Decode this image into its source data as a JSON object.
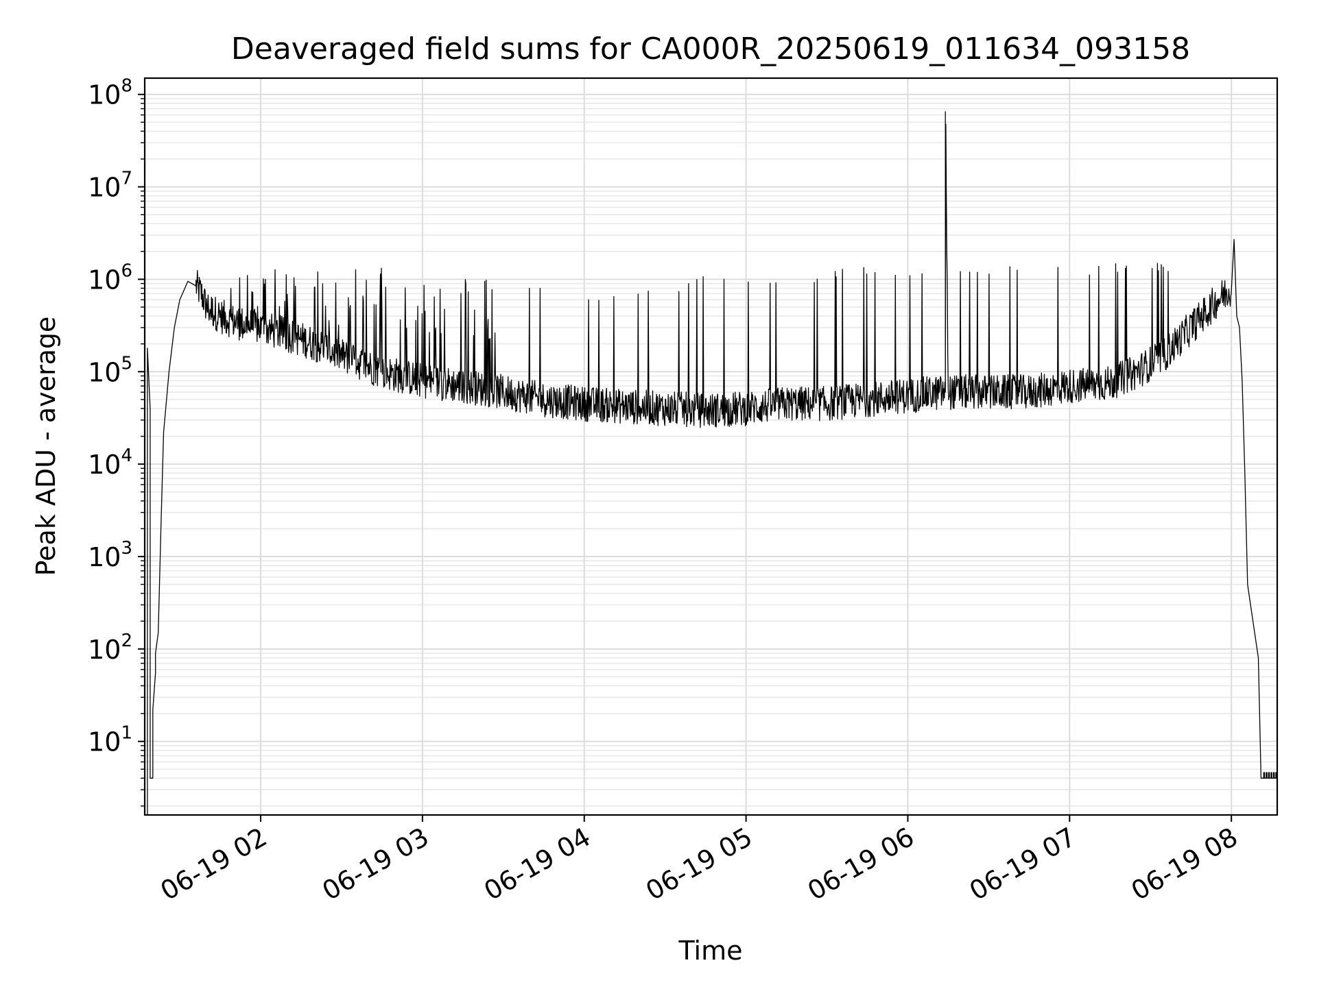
{
  "chart_data": {
    "type": "line",
    "title": "Deaveraged field sums for CA000R_20250619_011634_093158",
    "xlabel": "Time",
    "ylabel": "Peak ADU - average",
    "y_scale": "log",
    "ylim": [
      1.6,
      150000000
    ],
    "xlim": [
      "2025-06-19 01:17",
      "2025-06-19 08:17"
    ],
    "grid": true,
    "x_ticks": [
      {
        "t": "2025-06-19 02:00",
        "label": "06-19 02"
      },
      {
        "t": "2025-06-19 03:00",
        "label": "06-19 03"
      },
      {
        "t": "2025-06-19 04:00",
        "label": "06-19 04"
      },
      {
        "t": "2025-06-19 05:00",
        "label": "06-19 05"
      },
      {
        "t": "2025-06-19 06:00",
        "label": "06-19 06"
      },
      {
        "t": "2025-06-19 07:00",
        "label": "06-19 07"
      },
      {
        "t": "2025-06-19 08:00",
        "label": "06-19 08"
      }
    ],
    "y_ticks": [
      {
        "value": 10,
        "base": "10",
        "exp": "1"
      },
      {
        "value": 100,
        "base": "10",
        "exp": "2"
      },
      {
        "value": 1000,
        "base": "10",
        "exp": "3"
      },
      {
        "value": 10000,
        "base": "10",
        "exp": "4"
      },
      {
        "value": 100000,
        "base": "10",
        "exp": "5"
      },
      {
        "value": 1000000,
        "base": "10",
        "exp": "6"
      },
      {
        "value": 10000000,
        "base": "10",
        "exp": "7"
      },
      {
        "value": 100000000,
        "base": "10",
        "exp": "8"
      }
    ],
    "series": [
      {
        "color": "#000000",
        "points": [
          [
            "2025-06-19 01:18",
            1.6
          ],
          [
            "2025-06-19 01:18",
            180000
          ],
          [
            "2025-06-19 01:19",
            40000
          ],
          [
            "2025-06-19 01:19",
            4
          ],
          [
            "2025-06-19 01:20",
            4
          ],
          [
            "2025-06-19 01:20",
            22
          ],
          [
            "2025-06-19 01:21",
            55
          ],
          [
            "2025-06-19 01:21",
            90
          ],
          [
            "2025-06-19 01:22",
            150
          ],
          [
            "2025-06-19 01:23",
            2000
          ],
          [
            "2025-06-19 01:24",
            22000
          ],
          [
            "2025-06-19 01:26",
            100000
          ],
          [
            "2025-06-19 01:28",
            300000
          ],
          [
            "2025-06-19 01:30",
            600000
          ],
          [
            "2025-06-19 01:33",
            950000
          ],
          [
            "2025-06-19 01:36",
            850000
          ],
          [
            "2025-06-19 01:38",
            700000
          ],
          [
            "2025-06-19 01:40",
            500000
          ],
          [
            "2025-06-19 01:45",
            400000
          ],
          [
            "2025-06-19 01:50",
            350000
          ],
          [
            "2025-06-19 01:55",
            320000
          ],
          [
            "2025-06-19 02:00",
            300000
          ],
          [
            "2025-06-19 02:10",
            250000
          ],
          [
            "2025-06-19 02:20",
            200000
          ],
          [
            "2025-06-19 02:30",
            150000
          ],
          [
            "2025-06-19 02:45",
            100000
          ],
          [
            "2025-06-19 03:00",
            80000
          ],
          [
            "2025-06-19 03:15",
            70000
          ],
          [
            "2025-06-19 03:30",
            60000
          ],
          [
            "2025-06-19 03:45",
            50000
          ],
          [
            "2025-06-19 04:00",
            45000
          ],
          [
            "2025-06-19 04:15",
            42000
          ],
          [
            "2025-06-19 04:30",
            40000
          ],
          [
            "2025-06-19 04:45",
            38000
          ],
          [
            "2025-06-19 05:00",
            40000
          ],
          [
            "2025-06-19 05:15",
            45000
          ],
          [
            "2025-06-19 05:30",
            45000
          ],
          [
            "2025-06-19 05:45",
            50000
          ],
          [
            "2025-06-19 06:00",
            55000
          ],
          [
            "2025-06-19 06:14",
            60000
          ],
          [
            "2025-06-19 06:14",
            65000000
          ],
          [
            "2025-06-19 06:15",
            60000
          ],
          [
            "2025-06-19 06:30",
            60000
          ],
          [
            "2025-06-19 06:45",
            60000
          ],
          [
            "2025-06-19 07:00",
            70000
          ],
          [
            "2025-06-19 07:15",
            75000
          ],
          [
            "2025-06-19 07:25",
            100000
          ],
          [
            "2025-06-19 07:35",
            150000
          ],
          [
            "2025-06-19 07:45",
            300000
          ],
          [
            "2025-06-19 07:55",
            600000
          ],
          [
            "2025-06-19 08:00",
            800000
          ],
          [
            "2025-06-19 08:01",
            2700000
          ],
          [
            "2025-06-19 08:02",
            400000
          ],
          [
            "2025-06-19 08:03",
            300000
          ],
          [
            "2025-06-19 08:04",
            80000
          ],
          [
            "2025-06-19 08:05",
            8000
          ],
          [
            "2025-06-19 08:06",
            500
          ],
          [
            "2025-06-19 08:08",
            200
          ],
          [
            "2025-06-19 08:10",
            80
          ],
          [
            "2025-06-19 08:11",
            4
          ],
          [
            "2025-06-19 08:17",
            4
          ]
        ],
        "spike_envelope": [
          [
            "2025-06-19 01:40",
            1000000
          ],
          [
            "2025-06-19 02:00",
            1500000
          ],
          [
            "2025-06-19 02:30",
            1500000
          ],
          [
            "2025-06-19 03:00",
            1200000
          ],
          [
            "2025-06-19 03:30",
            1000000
          ],
          [
            "2025-06-19 04:00",
            700000
          ],
          [
            "2025-06-19 04:30",
            1000000
          ],
          [
            "2025-06-19 05:00",
            1200000
          ],
          [
            "2025-06-19 05:30",
            1300000
          ],
          [
            "2025-06-19 06:00",
            1500000
          ],
          [
            "2025-06-19 06:30",
            1500000
          ],
          [
            "2025-06-19 07:00",
            1500000
          ],
          [
            "2025-06-19 07:30",
            1700000
          ],
          [
            "2025-06-19 07:50",
            1000000
          ]
        ]
      }
    ]
  }
}
